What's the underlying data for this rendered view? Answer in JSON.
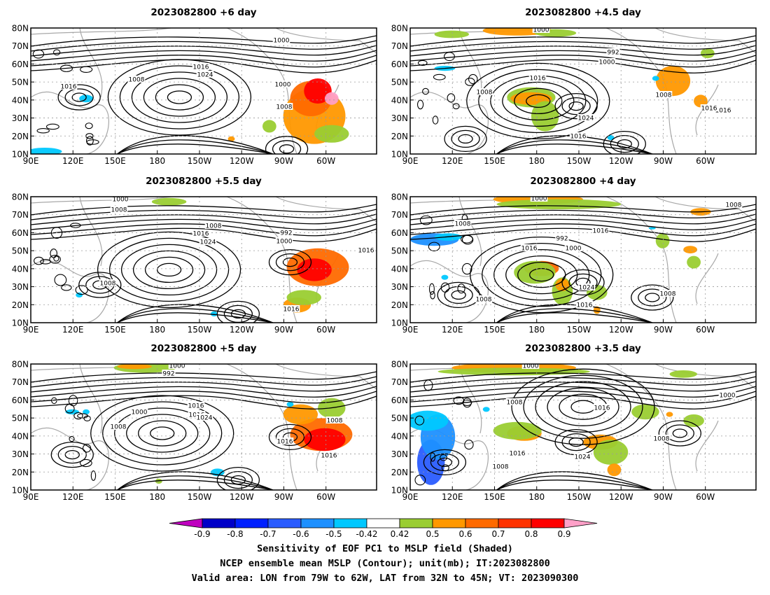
{
  "panels": [
    {
      "title": "2023082800  +6 day",
      "contours": [
        {
          "label": "1000"
        },
        {
          "label": "1016"
        },
        {
          "label": "1024"
        },
        {
          "label": "1008"
        },
        {
          "label": "1000"
        },
        {
          "label": "1016"
        },
        {
          "label": "1008"
        }
      ]
    },
    {
      "title": "2023082800  +4.5 day",
      "contours": [
        {
          "label": "1000"
        },
        {
          "label": "992"
        },
        {
          "label": "1000"
        },
        {
          "label": "1016"
        },
        {
          "label": "1008"
        },
        {
          "label": "1016"
        },
        {
          "label": "1024"
        },
        {
          "label": "1016"
        },
        {
          "label": "1008"
        },
        {
          "label": "1016"
        }
      ]
    },
    {
      "title": "2023082800  +5.5 day",
      "contours": [
        {
          "label": "1000"
        },
        {
          "label": "1008"
        },
        {
          "label": "1008"
        },
        {
          "label": "1016"
        },
        {
          "label": "1024"
        },
        {
          "label": "992"
        },
        {
          "label": "1000"
        },
        {
          "label": "1016"
        },
        {
          "label": "1008"
        },
        {
          "label": "1016"
        }
      ]
    },
    {
      "title": "2023082800  +4 day",
      "contours": [
        {
          "label": "1000"
        },
        {
          "label": "1008"
        },
        {
          "label": "1008"
        },
        {
          "label": "992"
        },
        {
          "label": "1016"
        },
        {
          "label": "1000"
        },
        {
          "label": "1016"
        },
        {
          "label": "1024"
        },
        {
          "label": "1008"
        },
        {
          "label": "1008"
        },
        {
          "label": "1016"
        }
      ]
    },
    {
      "title": "2023082800  +5 day",
      "contours": [
        {
          "label": "1000"
        },
        {
          "label": "992"
        },
        {
          "label": "1016"
        },
        {
          "label": "1000"
        },
        {
          "label": "1016"
        },
        {
          "label": "1024"
        },
        {
          "label": "1008"
        },
        {
          "label": "1008"
        },
        {
          "label": "1016"
        },
        {
          "label": "1016"
        }
      ]
    },
    {
      "title": "2023082800  +3.5 day",
      "contours": [
        {
          "label": "1000"
        },
        {
          "label": "1008"
        },
        {
          "label": "1016"
        },
        {
          "label": "1000"
        },
        {
          "label": "1016"
        },
        {
          "label": "1024"
        },
        {
          "label": "1008"
        },
        {
          "label": "1008"
        }
      ]
    }
  ],
  "x_ticks": [
    "90E",
    "120E",
    "150E",
    "180",
    "150W",
    "120W",
    "90W",
    "60W"
  ],
  "y_ticks": [
    "80N",
    "70N",
    "60N",
    "50N",
    "40N",
    "30N",
    "20N",
    "10N"
  ],
  "colorbar": {
    "labels": [
      "-0.9",
      "-0.8",
      "-0.7",
      "-0.6",
      "-0.5",
      "-0.42",
      "0.42",
      "0.5",
      "0.6",
      "0.7",
      "0.8",
      "0.9"
    ],
    "colors": [
      "#0000c8",
      "#0020ff",
      "#2a5cff",
      "#1e90ff",
      "#00c8ff",
      "#ffffff",
      "#9acd32",
      "#ff9800",
      "#ff6a00",
      "#ff3300",
      "#ff0000"
    ],
    "under_color": "#c000c0",
    "over_color": "#ffa0c8"
  },
  "captions": [
    "Sensitivity of EOF PC1 to MSLP field (Shaded)",
    "NCEP ensemble mean MSLP (Contour); unit(mb); IT:2023082800",
    "Valid area: LON from 79W to 62W, LAT from 32N to 45N; VT: 2023090300"
  ],
  "chart_data": {
    "type": "contour map (6 panels)",
    "x_ticks": [
      "90E",
      "120E",
      "150E",
      "180",
      "150W",
      "120W",
      "90W",
      "60W"
    ],
    "y_ticks": [
      "80N",
      "70N",
      "60N",
      "50N",
      "40N",
      "30N",
      "20N",
      "10N"
    ],
    "shading": "Sensitivity of EOF PC1 to MSLP field",
    "contours": "NCEP ensemble mean MSLP (mb)",
    "color_levels": [
      -0.9,
      -0.8,
      -0.7,
      -0.6,
      -0.5,
      -0.42,
      0.42,
      0.5,
      0.6,
      0.7,
      0.8,
      0.9
    ],
    "lead_times": [
      "+6 day",
      "+4.5 day",
      "+5.5 day",
      "+4 day",
      "+5 day",
      "+3.5 day"
    ]
  }
}
